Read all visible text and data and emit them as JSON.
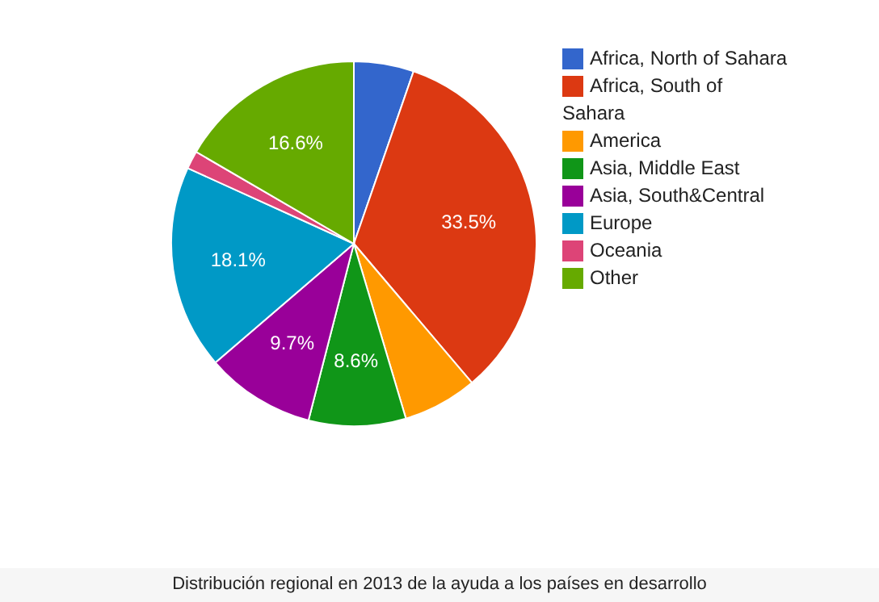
{
  "chart_data": {
    "type": "pie",
    "annotations": [
      "Distribución regional en 2013 de la ayuda a los países en desarrollo"
    ],
    "categories": [
      "Africa, North of Sahara",
      "Africa, South of Sahara",
      "America",
      "Asia, Middle East",
      "Asia, South&Central",
      "Europe",
      "Oceania",
      "Other"
    ],
    "values": [
      5.3,
      33.5,
      6.6,
      8.6,
      9.7,
      18.1,
      1.6,
      16.6
    ],
    "value_labels": [
      null,
      "33.5%",
      null,
      "8.6%",
      "9.7%",
      "18.1%",
      null,
      "16.6%"
    ],
    "colors": [
      "#3366cc",
      "#dc3912",
      "#ff9900",
      "#109618",
      "#990099",
      "#0099c6",
      "#dd4477",
      "#66aa00"
    ],
    "legend": "right"
  }
}
